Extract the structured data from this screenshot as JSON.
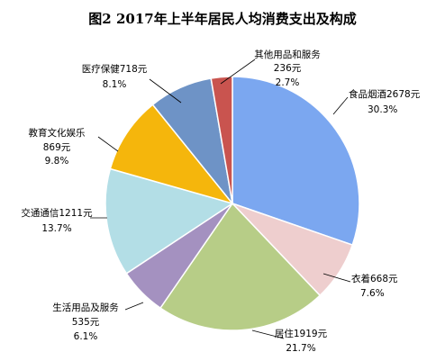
{
  "chart_data": {
    "type": "pie",
    "title": "图2    2017年上半年居民人均消费支出及构成",
    "start_angle_deg": 0,
    "direction": "clockwise",
    "slices": [
      {
        "name": "食品烟酒",
        "value": 2678,
        "value_label": "食品烟酒2678元",
        "pct_label": "30.3%",
        "percent": 30.3,
        "color": "#7BA7F0"
      },
      {
        "name": "衣着",
        "value": 668,
        "value_label": "衣着668元",
        "pct_label": "7.6%",
        "percent": 7.6,
        "color": "#EECECE"
      },
      {
        "name": "居住",
        "value": 1919,
        "value_label": "居住1919元",
        "pct_label": "21.7%",
        "percent": 21.7,
        "color": "#B7CD87"
      },
      {
        "name": "生活用品及服务",
        "value": 535,
        "value_label": "生活用品及服务",
        "value_label2": "535元",
        "pct_label": "6.1%",
        "percent": 6.1,
        "color": "#A491C0"
      },
      {
        "name": "交通通信",
        "value": 1211,
        "value_label": "交通通信1211元",
        "pct_label": "13.7%",
        "percent": 13.7,
        "color": "#B3DEE6"
      },
      {
        "name": "教育文化娱乐",
        "value": 869,
        "value_label": "教育文化娱乐",
        "value_label2": "869元",
        "pct_label": "9.8%",
        "percent": 9.8,
        "color": "#F5B60C"
      },
      {
        "name": "医疗保健",
        "value": 718,
        "value_label": "医疗保健718元",
        "pct_label": "8.1%",
        "percent": 8.1,
        "color": "#6E93C6"
      },
      {
        "name": "其他用品和服务",
        "value": 236,
        "value_label": "其他用品和服务",
        "value_label2": "236元",
        "pct_label": "2.7%",
        "percent": 2.7,
        "color": "#C9544F"
      }
    ]
  }
}
